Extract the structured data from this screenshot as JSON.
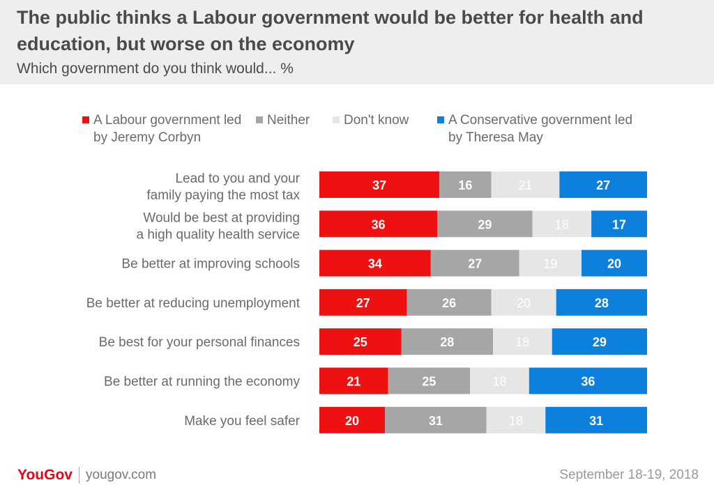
{
  "header": {
    "title": "The public thinks a Labour government would be better for health and education, but worse on the economy",
    "subtitle": "Which government do you think would... %"
  },
  "legend": {
    "labour": "A Labour government led by Jeremy Corbyn",
    "neither": "Neither",
    "dont_know": "Don't know",
    "conservative": "A Conservative government led by Theresa May"
  },
  "colors": {
    "labour": "#ee1111",
    "neither": "#a6a6a6",
    "dont_know": "#e6e6e6",
    "conservative": "#0d7fdc",
    "header_bg": "#eeeeee",
    "brand": "#e30613"
  },
  "chart_data": {
    "type": "bar",
    "orientation": "horizontal",
    "stacked": true,
    "title": "The public thinks a Labour government would be better for health and education, but worse on the economy",
    "subtitle": "Which government do you think would... %",
    "categories": [
      "Lead to you and your family paying the most tax",
      "Would be best at providing a high quality health service",
      "Be better at improving schools",
      "Be better at reducing unemployment",
      "Be best for your personal finances",
      "Be better at running the economy",
      "Make you feel safer"
    ],
    "series": [
      {
        "name": "A Labour government led by Jeremy Corbyn",
        "key": "labour",
        "values": [
          37,
          36,
          34,
          27,
          25,
          21,
          20
        ]
      },
      {
        "name": "Neither",
        "key": "neither",
        "values": [
          16,
          29,
          27,
          26,
          28,
          25,
          31
        ]
      },
      {
        "name": "Don't know",
        "key": "dont_know",
        "values": [
          21,
          18,
          19,
          20,
          18,
          18,
          18
        ]
      },
      {
        "name": "A Conservative government led by Theresa May",
        "key": "conservative",
        "values": [
          27,
          17,
          20,
          28,
          29,
          36,
          31
        ]
      }
    ],
    "legend_position": "top",
    "grid": false
  },
  "footer": {
    "logo": "YouGov",
    "url": "yougov.com",
    "date": "September 18-19, 2018"
  }
}
